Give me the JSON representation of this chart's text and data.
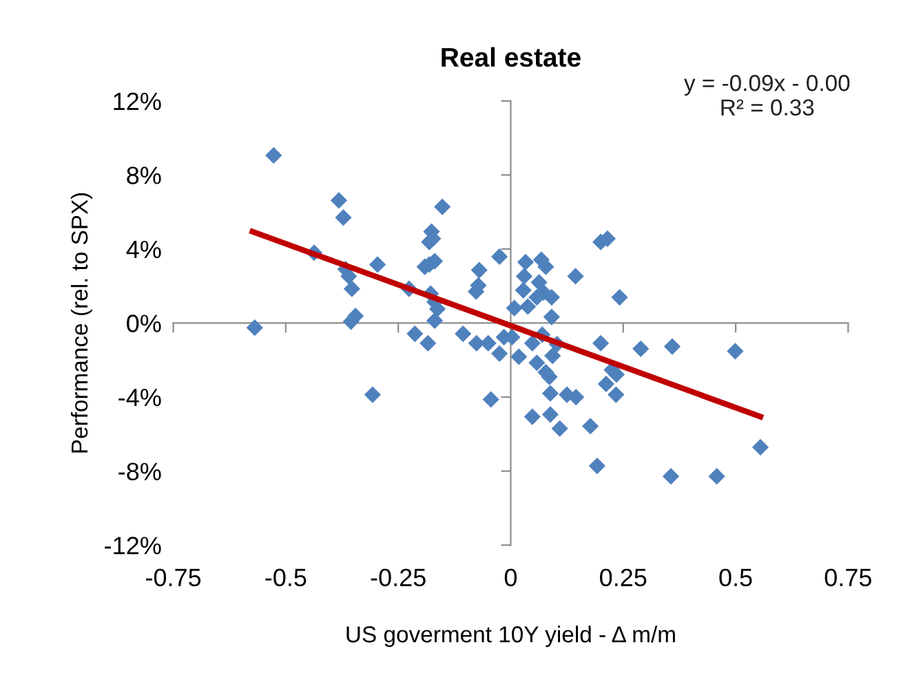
{
  "chart_data": {
    "type": "scatter",
    "title": "Real estate",
    "xlabel": "US goverment 10Y yield - Δ m/m",
    "ylabel": "Performance (rel. to SPX)",
    "annotations": [
      "y = -0.09x - 0.00",
      "R² = 0.33"
    ],
    "xlim": [
      -0.75,
      0.75
    ],
    "xticks": [
      -0.75,
      -0.5,
      -0.25,
      0,
      0.25,
      0.5,
      0.75
    ],
    "ylim": [
      -12,
      12
    ],
    "yticks": [
      {
        "value": -12,
        "label": "-12%"
      },
      {
        "value": -8,
        "label": "-8%"
      },
      {
        "value": -4,
        "label": "-4%"
      },
      {
        "value": 0,
        "label": "0%"
      },
      {
        "value": 4,
        "label": "4%"
      },
      {
        "value": 8,
        "label": "8%"
      },
      {
        "value": 12,
        "label": "12%"
      }
    ],
    "series": [
      {
        "marker": "diamond",
        "color": "#4f81bd",
        "x": [
          -0.527,
          -0.569,
          -0.382,
          -0.372,
          -0.437,
          -0.367,
          -0.36,
          -0.353,
          -0.345,
          -0.355,
          -0.307,
          -0.296,
          -0.226,
          -0.213,
          -0.184,
          -0.191,
          -0.181,
          -0.169,
          -0.176,
          -0.173,
          -0.181,
          -0.152,
          -0.178,
          -0.169,
          -0.163,
          -0.169,
          -0.106,
          -0.077,
          -0.072,
          -0.07,
          -0.076,
          -0.05,
          -0.025,
          -0.025,
          -0.044,
          -0.015,
          0.008,
          0.003,
          0.018,
          0.033,
          0.03,
          0.028,
          0.038,
          0.048,
          0.048,
          0.058,
          0.063,
          0.068,
          0.078,
          0.058,
          0.073,
          0.07,
          0.078,
          0.086,
          0.088,
          0.088,
          0.091,
          0.091,
          0.093,
          0.103,
          0.109,
          0.125,
          0.145,
          0.144,
          0.177,
          0.192,
          0.2,
          0.2,
          0.215,
          0.212,
          0.225,
          0.235,
          0.234,
          0.242,
          0.289,
          0.359,
          0.356,
          0.458,
          0.499,
          0.555
        ],
        "values": [
          9.06,
          -0.25,
          6.63,
          5.7,
          3.8,
          2.91,
          2.53,
          1.85,
          0.38,
          0.08,
          -3.87,
          3.16,
          1.85,
          -0.58,
          -1.09,
          3.04,
          3.16,
          3.34,
          4.94,
          4.56,
          4.38,
          6.28,
          1.59,
          1.14,
          0.76,
          0.13,
          -0.58,
          1.7,
          2.03,
          2.86,
          -1.09,
          -1.09,
          3.59,
          -1.65,
          -4.13,
          -0.76,
          0.81,
          -0.76,
          -1.82,
          3.29,
          2.53,
          1.77,
          0.89,
          -1.09,
          -5.06,
          -2.15,
          2.2,
          3.42,
          3.04,
          1.39,
          1.65,
          -0.63,
          -2.66,
          -2.91,
          -3.8,
          -4.94,
          1.39,
          0.33,
          -1.77,
          -1.14,
          -5.7,
          -3.87,
          -4.0,
          2.53,
          -5.57,
          -7.72,
          -1.09,
          4.38,
          4.56,
          -3.29,
          -2.53,
          -2.78,
          -3.87,
          1.39,
          -1.39,
          -1.27,
          -8.28,
          -8.28,
          -1.52,
          -6.71
        ]
      },
      {
        "type": "line",
        "color": "#c00000",
        "x": [
          -0.574,
          0.555
        ],
        "values": [
          4.94,
          -5.06
        ]
      }
    ]
  }
}
